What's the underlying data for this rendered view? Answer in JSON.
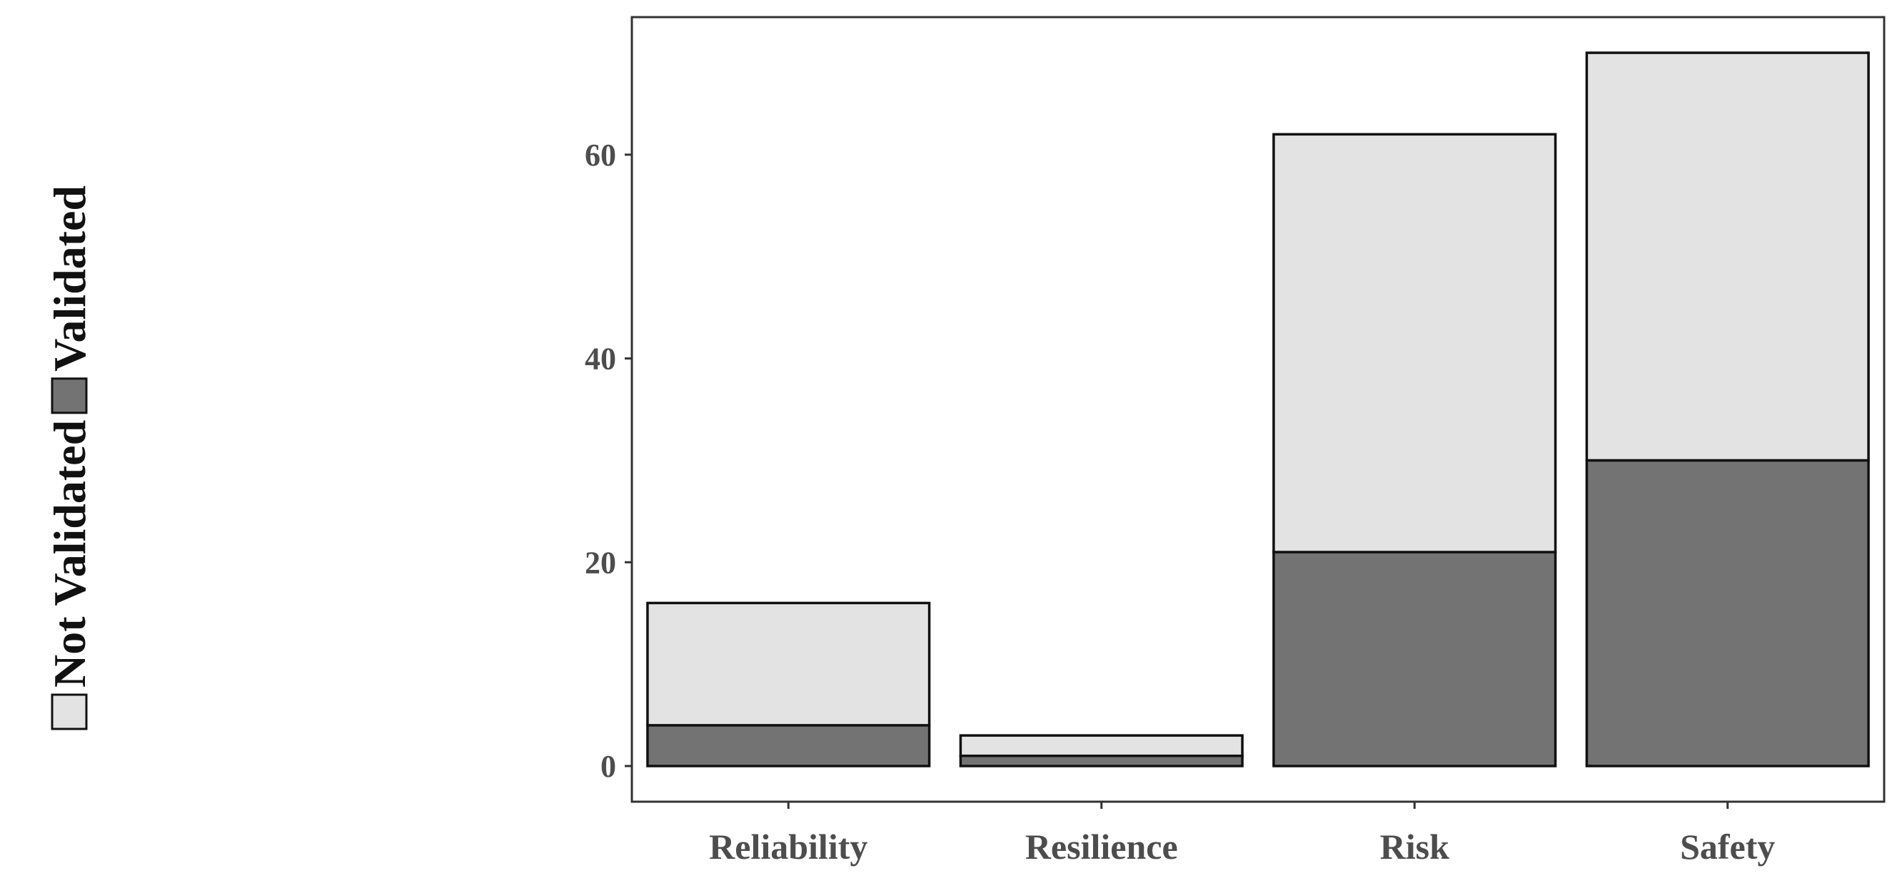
{
  "chart_data": {
    "type": "bar",
    "stacked": true,
    "title": "",
    "xlabel": "",
    "ylabel": "",
    "categories": [
      "Reliability",
      "Resilience",
      "Risk",
      "Safety"
    ],
    "series": [
      {
        "name": "Validated",
        "values": [
          4,
          1,
          21,
          30
        ],
        "color": "#737373"
      },
      {
        "name": "Not Validated",
        "values": [
          12,
          2,
          41,
          40
        ],
        "color": "#e3e3e3"
      }
    ],
    "ylim": [
      -3.5,
      73.5
    ],
    "yticks": [
      0,
      20,
      40,
      60
    ],
    "ytick_labels": [
      "0",
      "20",
      "40",
      "60"
    ],
    "grid": false,
    "legend": {
      "placement": "left",
      "orientation": "vertical-rotated",
      "entries": [
        {
          "label": "Not Validated",
          "color": "#e3e3e3"
        },
        {
          "label": "Validated",
          "color": "#737373"
        }
      ]
    },
    "frame_color": "#333333"
  }
}
